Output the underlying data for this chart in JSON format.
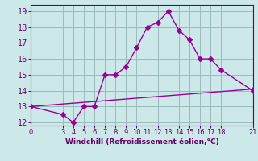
{
  "xlabel": "Windchill (Refroidissement éolien,°C)",
  "line1_x": [
    0,
    3,
    4,
    5,
    6,
    7,
    8,
    9,
    10,
    11,
    12,
    13,
    14,
    15,
    16,
    17,
    18,
    21
  ],
  "line1_y": [
    13,
    12.5,
    12,
    13.0,
    13.0,
    15.0,
    15.0,
    15.5,
    16.7,
    18.0,
    18.3,
    19.0,
    17.8,
    17.2,
    16.0,
    16.0,
    15.3,
    14.0
  ],
  "line2_x": [
    0,
    21
  ],
  "line2_y": [
    13,
    14.1
  ],
  "line_color": "#990099",
  "bg_color": "#cce8e8",
  "grid_color": "#99bbbb",
  "axis_color": "#660066",
  "text_color": "#660066",
  "xlim": [
    0,
    21
  ],
  "ylim": [
    11.8,
    19.4
  ],
  "xticks": [
    0,
    3,
    4,
    5,
    6,
    7,
    8,
    9,
    10,
    11,
    12,
    13,
    14,
    15,
    16,
    17,
    18,
    21
  ],
  "yticks": [
    12,
    13,
    14,
    15,
    16,
    17,
    18,
    19
  ],
  "markersize": 3,
  "linewidth": 1.0
}
